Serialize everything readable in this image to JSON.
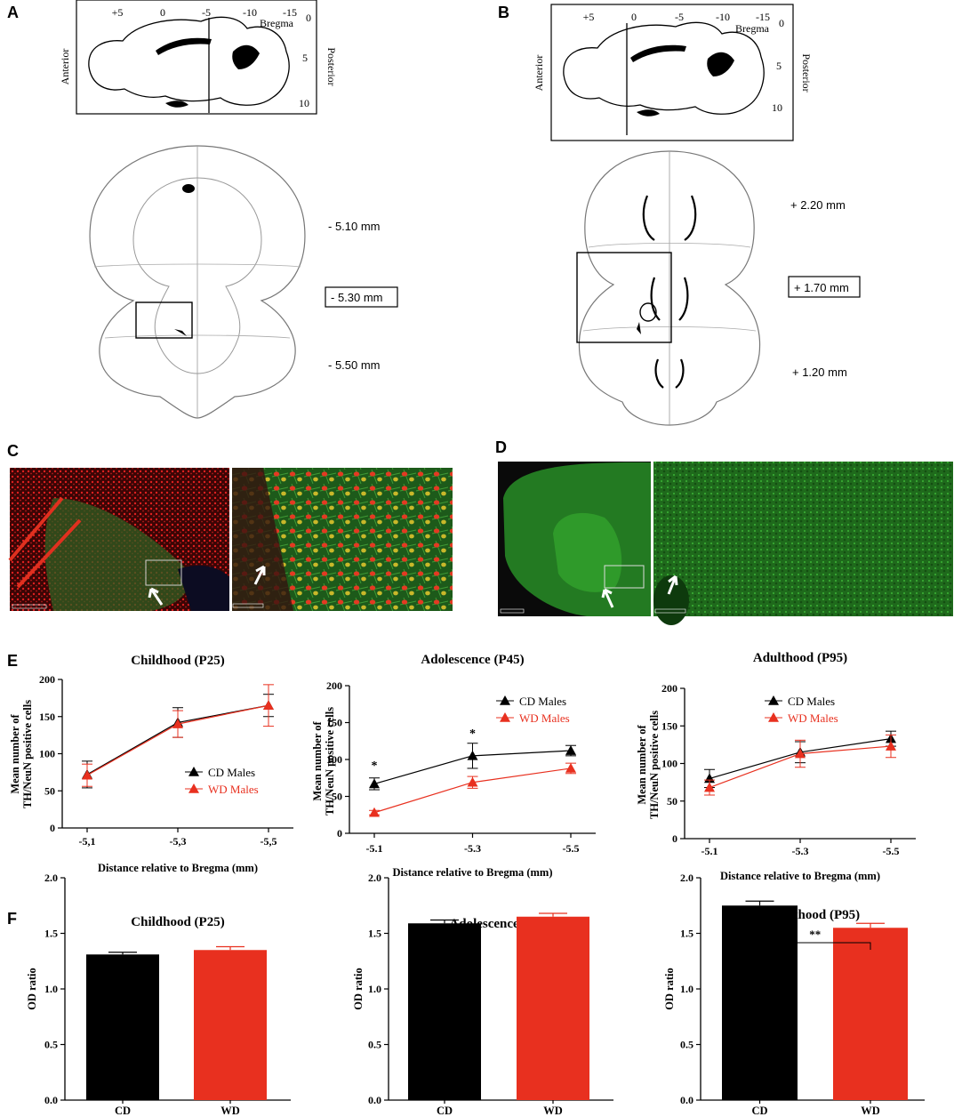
{
  "panels": {
    "A": {
      "letter": "A",
      "ap_labels": [
        "+5",
        "0",
        "-5",
        "-10",
        "-15"
      ],
      "bregma": "Bregma",
      "dv_labels": [
        "0",
        "5",
        "10"
      ],
      "anterior": "Anterior",
      "posterior": "Posterior",
      "levels": [
        "- 5.10 mm",
        "- 5.30 mm",
        "- 5.50 mm"
      ]
    },
    "B": {
      "letter": "B",
      "ap_labels": [
        "+5",
        "0",
        "-5",
        "-10",
        "-15"
      ],
      "bregma": "Bregma",
      "dv_labels": [
        "0",
        "5",
        "10"
      ],
      "anterior": "Anterior",
      "posterior": "Posterior",
      "levels": [
        "+ 2.20 mm",
        "+ 1.70 mm",
        "+ 1.20 mm"
      ]
    },
    "C": {
      "letter": "C"
    },
    "D": {
      "letter": "D"
    },
    "E": {
      "letter": "E"
    },
    "F": {
      "letter": "F"
    }
  },
  "colors": {
    "cd": "#000000",
    "wd": "#e8301f",
    "green": "#2fa82a",
    "red": "#d42020"
  },
  "chart_data": [
    {
      "id": "E-childhood",
      "type": "line",
      "title": "Childhood (P25)",
      "xlabel": "Distance relative to Bregma (mm)",
      "ylabel": "Mean number of TH/NeuN positive cells",
      "categories": [
        "-5,1",
        "-5,3",
        "-5,5"
      ],
      "ylim": [
        0,
        200
      ],
      "yticks": [
        0,
        50,
        100,
        150,
        200
      ],
      "series": [
        {
          "name": "CD Males",
          "values": [
            72,
            142,
            165
          ],
          "errors": [
            18,
            20,
            15
          ]
        },
        {
          "name": "WD Males",
          "values": [
            71,
            140,
            165
          ],
          "errors": [
            15,
            18,
            28
          ]
        }
      ],
      "annotations": [],
      "legend": "center-right"
    },
    {
      "id": "E-adolescence",
      "type": "line",
      "title": "Adolescence (P45)",
      "xlabel": "Distance relative to Bregma (mm)",
      "ylabel": "Mean number of TH/NeuN positive cells",
      "categories": [
        "-5.1",
        "-5.3",
        "-5.5"
      ],
      "ylim": [
        0,
        200
      ],
      "yticks": [
        0,
        50,
        100,
        150,
        200
      ],
      "series": [
        {
          "name": "CD Males",
          "values": [
            67,
            105,
            112
          ],
          "errors": [
            8,
            17,
            7
          ]
        },
        {
          "name": "WD Males",
          "values": [
            28,
            69,
            88
          ],
          "errors": [
            3,
            8,
            7
          ]
        }
      ],
      "annotations": [
        "*",
        "*"
      ],
      "legend": "top-right"
    },
    {
      "id": "E-adulthood",
      "type": "line",
      "title": "Adulthood (P95)",
      "xlabel": "Distance relative to Bregma (mm)",
      "ylabel": "Mean number of TH/NeuN positive cells",
      "categories": [
        "-5.1",
        "-5.3",
        "-5.5"
      ],
      "ylim": [
        0,
        200
      ],
      "yticks": [
        0,
        50,
        100,
        150,
        200
      ],
      "series": [
        {
          "name": "CD Males",
          "values": [
            80,
            115,
            133
          ],
          "errors": [
            12,
            14,
            10
          ]
        },
        {
          "name": "WD Males",
          "values": [
            68,
            113,
            123
          ],
          "errors": [
            10,
            18,
            15
          ]
        }
      ],
      "annotations": [],
      "legend": "top-right"
    },
    {
      "id": "F-childhood",
      "type": "bar",
      "title": "Childhood (P25)",
      "ylabel": "OD ratio",
      "categories": [
        "CD",
        "WD"
      ],
      "values": [
        1.31,
        1.35
      ],
      "errors": [
        0.02,
        0.03
      ],
      "ylim": [
        0,
        2.0
      ],
      "yticks": [
        "0.0",
        "0.5",
        "1.0",
        "1.5",
        "2.0"
      ],
      "annotations": []
    },
    {
      "id": "F-adolescence",
      "type": "bar",
      "title": "Adolescence (P45)",
      "ylabel": "OD ratio",
      "categories": [
        "CD",
        "WD"
      ],
      "values": [
        1.59,
        1.65
      ],
      "errors": [
        0.03,
        0.03
      ],
      "ylim": [
        0,
        2.0
      ],
      "yticks": [
        "0.0",
        "0.5",
        "1.0",
        "1.5",
        "2.0"
      ],
      "annotations": []
    },
    {
      "id": "F-adulthood",
      "type": "bar",
      "title": "Adulthood (P95)",
      "ylabel": "OD ratio",
      "categories": [
        "CD",
        "WD"
      ],
      "values": [
        1.75,
        1.55
      ],
      "errors": [
        0.04,
        0.04
      ],
      "ylim": [
        0,
        2.0
      ],
      "yticks": [
        "0.0",
        "0.5",
        "1.0",
        "1.5",
        "2.0"
      ],
      "annotations": [
        "**"
      ]
    }
  ]
}
